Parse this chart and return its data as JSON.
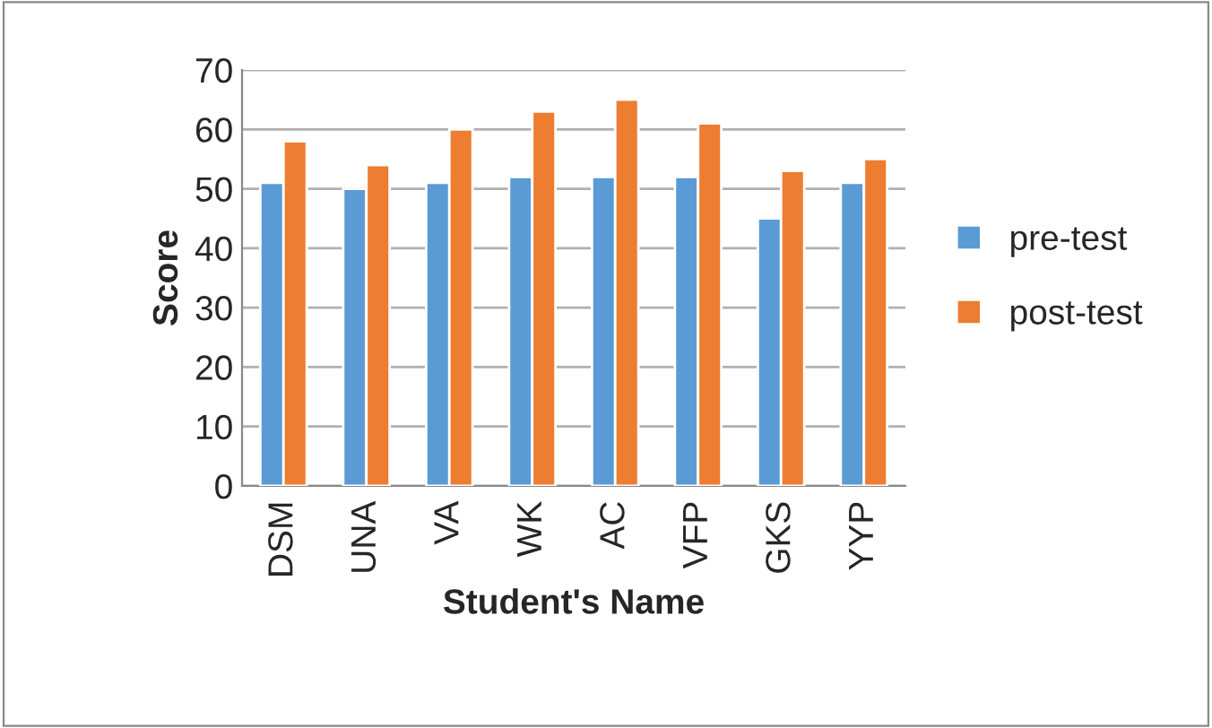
{
  "chart_data": {
    "type": "bar",
    "xlabel": "Student's Name",
    "ylabel": "Score",
    "categories": [
      "DSM",
      "UNA",
      "VA",
      "WK",
      "AC",
      "VFP",
      "GKS",
      "YYP"
    ],
    "series": [
      {
        "name": "pre-test",
        "color": "#5b9bd5",
        "values": [
          51,
          50,
          51,
          52,
          52,
          52,
          45,
          51
        ]
      },
      {
        "name": "post-test",
        "color": "#ed7d31",
        "values": [
          58,
          54,
          60,
          63,
          65,
          61,
          53,
          55
        ]
      }
    ],
    "ylim": [
      0,
      70
    ],
    "yticks": [
      0,
      10,
      20,
      30,
      40,
      50,
      60,
      70
    ],
    "grid": "y",
    "legend": "right"
  }
}
